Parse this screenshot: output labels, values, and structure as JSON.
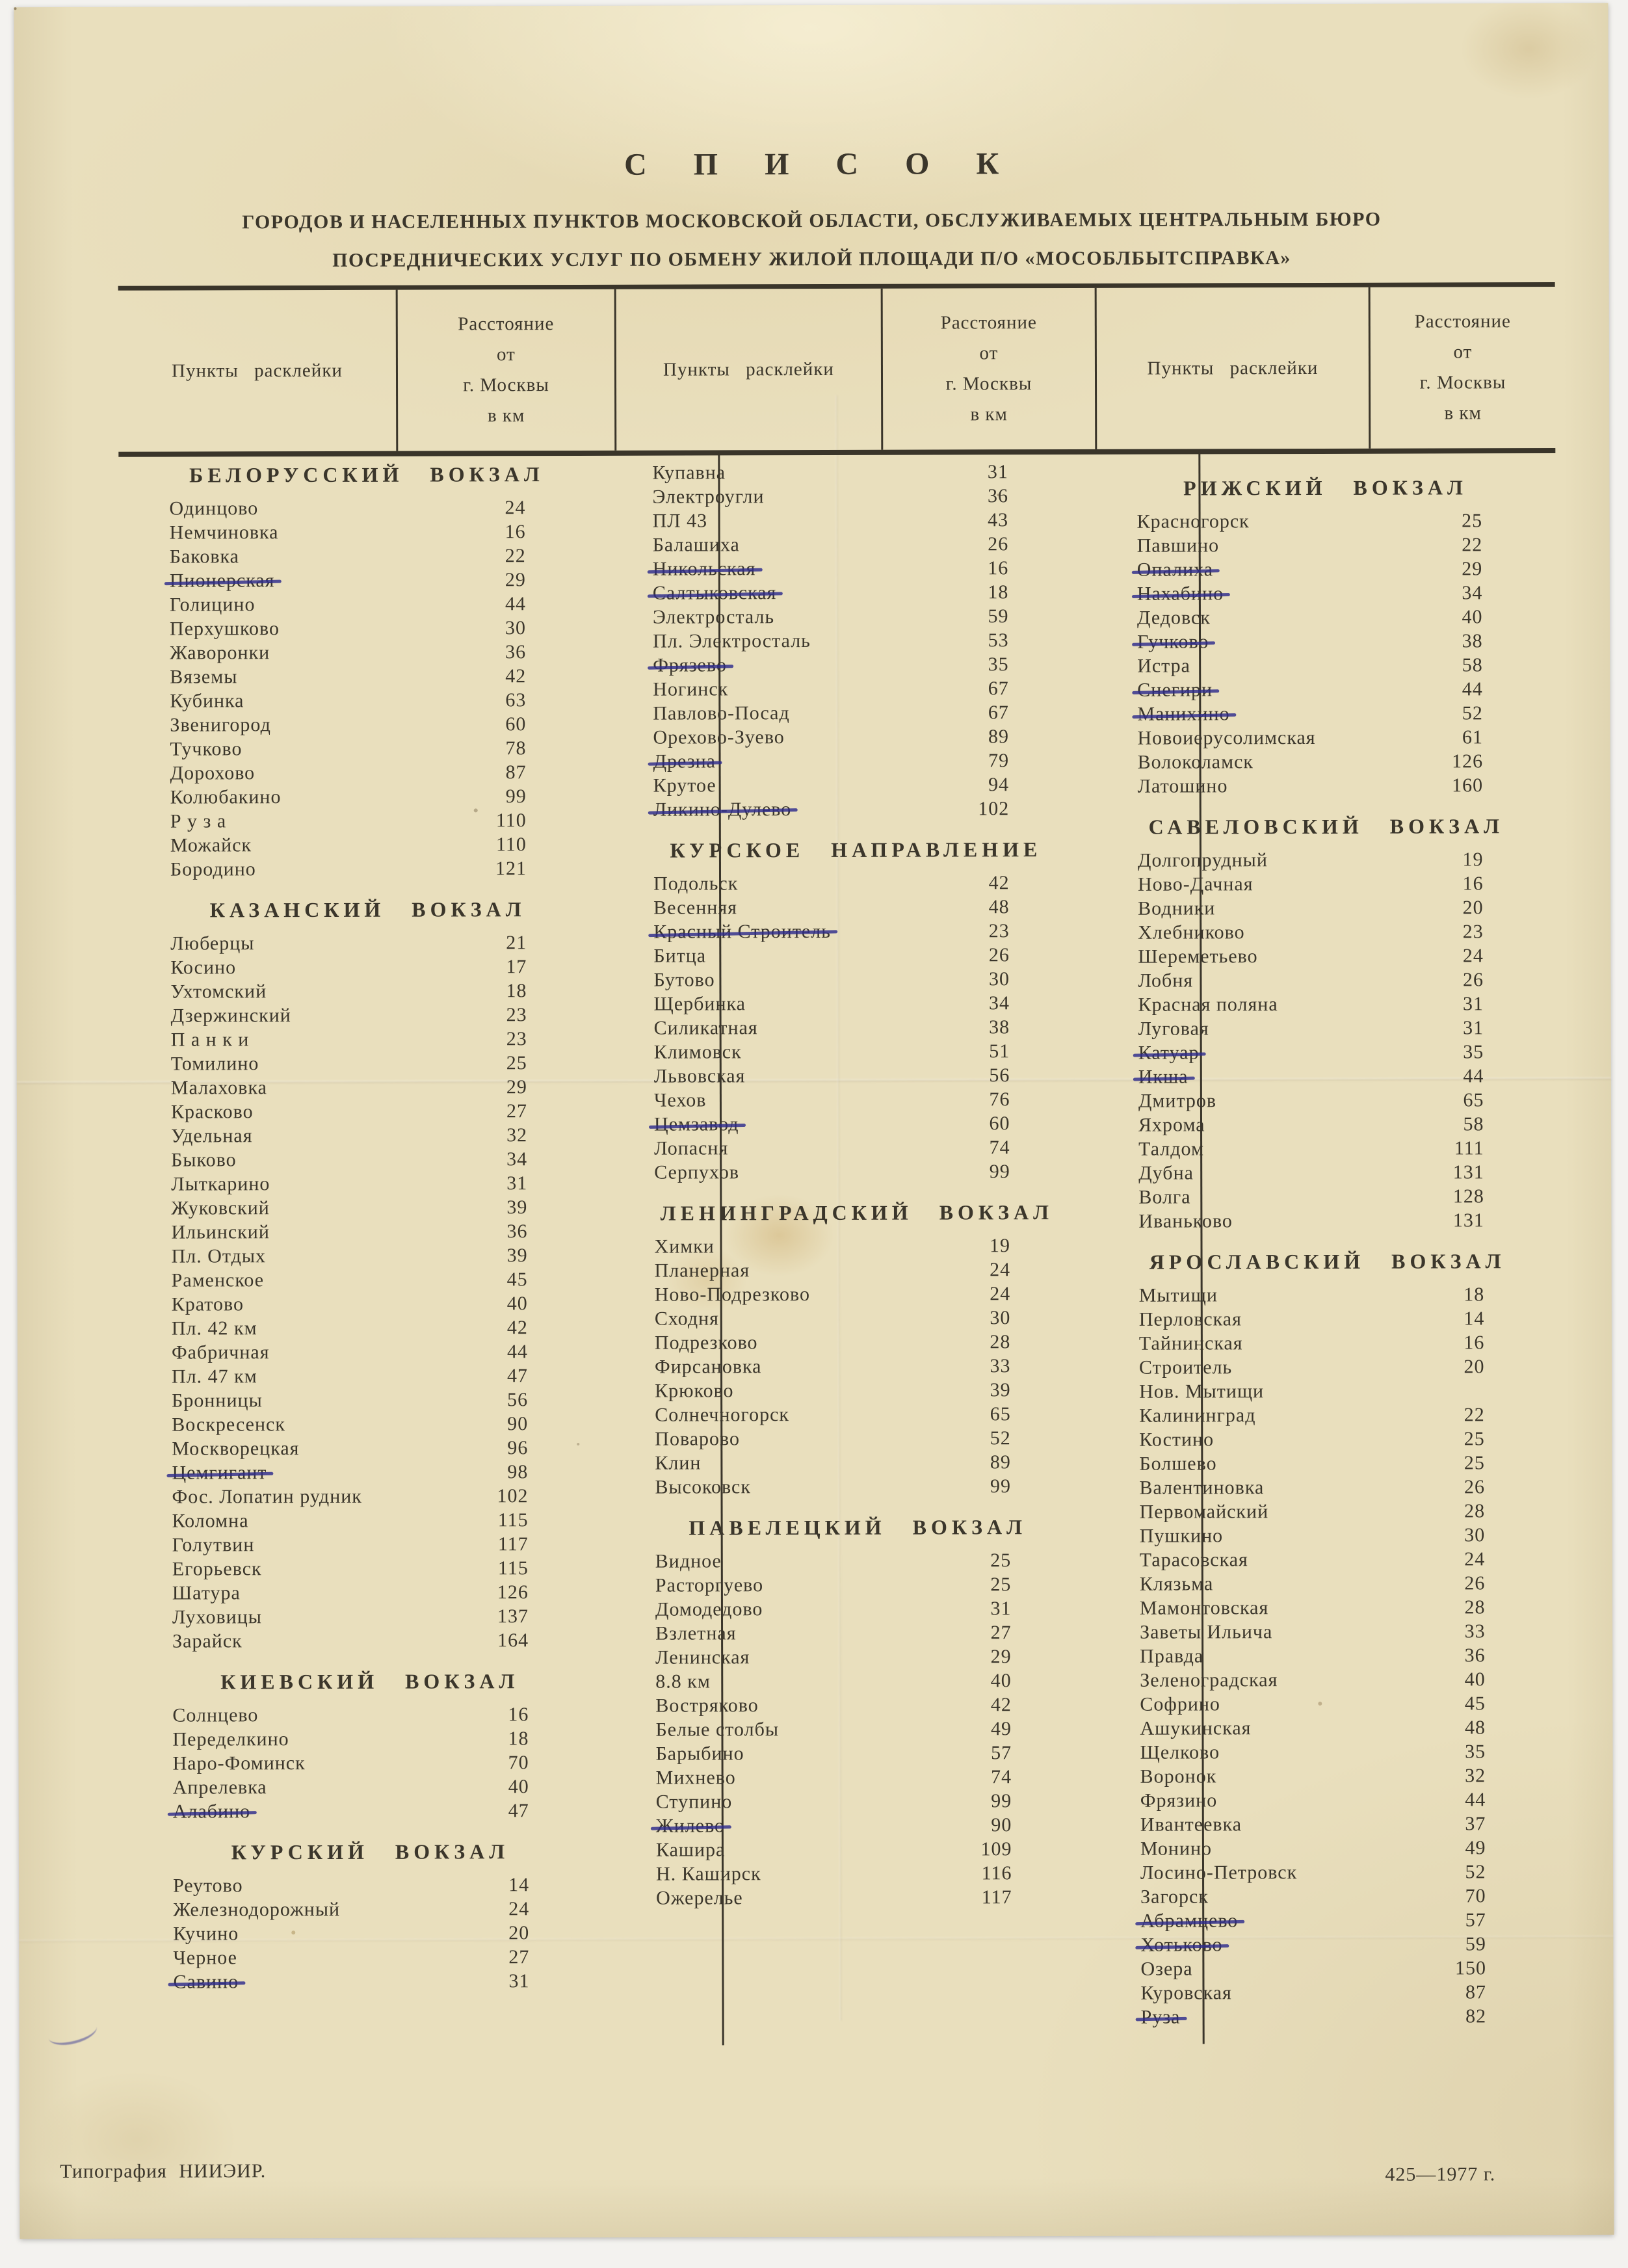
{
  "page": {
    "title": "С П И С О К",
    "subtitle_line1": "ГОРОДОВ И НАСЕЛЕННЫХ ПУНКТОВ МОСКОВСКОЙ ОБЛАСТИ, ОБСЛУЖИВАЕМЫХ ЦЕНТРАЛЬНЫМ БЮРО",
    "subtitle_line2": "ПОСРЕДНИЧЕСКИХ УСЛУГ ПО ОБМЕНУ ЖИЛОЙ ПЛОЩАДИ П/О «МОСОБЛБЫТСПРАВКА»"
  },
  "table_header": {
    "points_label": "Пункты расклейки",
    "distance_label_lines": [
      "Расстояние",
      "от",
      "г. Москвы",
      "в км"
    ]
  },
  "colors": {
    "paper": "#e9dfbd",
    "ink": "#3b362b",
    "strike_ink": "#2e2c8c"
  },
  "columns": [
    {
      "blocks": [
        {
          "heading": "БЕЛОРУССКИЙ ВОКЗАЛ",
          "rows": [
            {
              "name": "Одинцово",
              "km": "24"
            },
            {
              "name": "Немчиновка",
              "km": "16"
            },
            {
              "name": "Баковка",
              "km": "22"
            },
            {
              "name": "Пионерская",
              "km": "29",
              "struck": true
            },
            {
              "name": "Голицино",
              "km": "44"
            },
            {
              "name": "Перхушково",
              "km": "30"
            },
            {
              "name": "Жаворонки",
              "km": "36"
            },
            {
              "name": "Вяземы",
              "km": "42"
            },
            {
              "name": "Кубинка",
              "km": "63"
            },
            {
              "name": "Звенигород",
              "km": "60"
            },
            {
              "name": "Тучково",
              "km": "78"
            },
            {
              "name": "Дорохово",
              "km": "87"
            },
            {
              "name": "Колюбакино",
              "km": "99"
            },
            {
              "name": "Р у з а",
              "km": "110"
            },
            {
              "name": "Можайск",
              "km": "110"
            },
            {
              "name": "Бородино",
              "km": "121"
            }
          ]
        },
        {
          "heading": "КАЗАНСКИЙ ВОКЗАЛ",
          "rows": [
            {
              "name": "Люберцы",
              "km": "21"
            },
            {
              "name": "Косино",
              "km": "17"
            },
            {
              "name": "Ухтомский",
              "km": "18"
            },
            {
              "name": "Дзержинский",
              "km": "23"
            },
            {
              "name": "П а н к и",
              "km": "23"
            },
            {
              "name": "Томилино",
              "km": "25"
            },
            {
              "name": "Малаховка",
              "km": "29"
            },
            {
              "name": "Красково",
              "km": "27"
            },
            {
              "name": "Удельная",
              "km": "32"
            },
            {
              "name": "Быково",
              "km": "34"
            },
            {
              "name": "Лыткарино",
              "km": "31"
            },
            {
              "name": "Жуковский",
              "km": "39"
            },
            {
              "name": "Ильинский",
              "km": "36"
            },
            {
              "name": "Пл. Отдых",
              "km": "39"
            },
            {
              "name": "Раменское",
              "km": "45"
            },
            {
              "name": "Кратово",
              "km": "40"
            },
            {
              "name": "Пл. 42 км",
              "km": "42"
            },
            {
              "name": "Фабричная",
              "km": "44"
            },
            {
              "name": "Пл. 47 км",
              "km": "47"
            },
            {
              "name": "Бронницы",
              "km": "56"
            },
            {
              "name": "Воскресенск",
              "km": "90"
            },
            {
              "name": "Москворецкая",
              "km": "96"
            },
            {
              "name": "Цемгигант",
              "km": "98",
              "struck": true
            },
            {
              "name": "Фос. Лопатин рудник",
              "km": "102"
            },
            {
              "name": "Коломна",
              "km": "115"
            },
            {
              "name": "Голутвин",
              "km": "117"
            },
            {
              "name": "Егорьевск",
              "km": "115"
            },
            {
              "name": "Шатура",
              "km": "126"
            },
            {
              "name": "Луховицы",
              "km": "137"
            },
            {
              "name": "Зарайск",
              "km": "164"
            }
          ]
        },
        {
          "heading": "КИЕВСКИЙ ВОКЗАЛ",
          "rows": [
            {
              "name": "Солнцево",
              "km": "16"
            },
            {
              "name": "Переделкино",
              "km": "18"
            },
            {
              "name": "Наро-Фоминск",
              "km": "70"
            },
            {
              "name": "Апрелевка",
              "km": "40"
            },
            {
              "name": "Алабино",
              "km": "47",
              "struck": true
            }
          ]
        },
        {
          "heading": "КУРСКИЙ ВОКЗАЛ",
          "rows": [
            {
              "name": "Реутово",
              "km": "14"
            },
            {
              "name": "Железнодорожный",
              "km": "24"
            },
            {
              "name": "Кучино",
              "km": "20"
            },
            {
              "name": "Черное",
              "km": "27"
            },
            {
              "name": "Савино",
              "km": "31",
              "struck": true
            }
          ]
        }
      ]
    },
    {
      "blocks": [
        {
          "heading": "",
          "rows": [
            {
              "name": "Купавна",
              "km": "31"
            },
            {
              "name": "Электроугли",
              "km": "36"
            },
            {
              "name": "ПЛ 43",
              "km": "43"
            },
            {
              "name": "Балашиха",
              "km": "26"
            },
            {
              "name": "Никольская",
              "km": "16",
              "struck": true
            },
            {
              "name": "Салтыковская",
              "km": "18",
              "struck": true
            },
            {
              "name": "Электросталь",
              "km": "59"
            },
            {
              "name": "Пл. Электросталь",
              "km": "53"
            },
            {
              "name": "Фрязево",
              "km": "35",
              "struck": true
            },
            {
              "name": "Ногинск",
              "km": "67"
            },
            {
              "name": "Павлово-Посад",
              "km": "67"
            },
            {
              "name": "Орехово-Зуево",
              "km": "89"
            },
            {
              "name": "Дрезна",
              "km": "79",
              "struck": true
            },
            {
              "name": "Крутое",
              "km": "94"
            },
            {
              "name": "Ликино-Дулево",
              "km": "102",
              "struck": true
            }
          ]
        },
        {
          "heading": "КУРСКОЕ НАПРАВЛЕНИЕ",
          "rows": [
            {
              "name": "Подольск",
              "km": "42"
            },
            {
              "name": "Весенняя",
              "km": "48"
            },
            {
              "name": "Красный Строитель",
              "km": "23",
              "struck": true
            },
            {
              "name": "Битца",
              "km": "26"
            },
            {
              "name": "Бутово",
              "km": "30"
            },
            {
              "name": "Щербинка",
              "km": "34"
            },
            {
              "name": "Силикатная",
              "km": "38"
            },
            {
              "name": "Климовск",
              "km": "51"
            },
            {
              "name": "Львовская",
              "km": "56"
            },
            {
              "name": "Чехов",
              "km": "76"
            },
            {
              "name": "Цемзавод",
              "km": "60",
              "struck": true
            },
            {
              "name": "Лопасня",
              "km": "74"
            },
            {
              "name": "Серпухов",
              "km": "99"
            }
          ]
        },
        {
          "heading": "ЛЕНИНГРАДСКИЙ ВОКЗАЛ",
          "rows": [
            {
              "name": "Химки",
              "km": "19"
            },
            {
              "name": "Планерная",
              "km": "24"
            },
            {
              "name": "Ново-Подрезково",
              "km": "24"
            },
            {
              "name": "Сходня",
              "km": "30"
            },
            {
              "name": "Подрезково",
              "km": "28"
            },
            {
              "name": "Фирсановка",
              "km": "33"
            },
            {
              "name": "Крюково",
              "km": "39"
            },
            {
              "name": "Солнечногорск",
              "km": "65"
            },
            {
              "name": "Поварово",
              "km": "52"
            },
            {
              "name": "Клин",
              "km": "89"
            },
            {
              "name": "Высоковск",
              "km": "99"
            }
          ]
        },
        {
          "heading": "ПАВЕЛЕЦКИЙ ВОКЗАЛ",
          "rows": [
            {
              "name": "Видное",
              "km": "25"
            },
            {
              "name": "Расторгуево",
              "km": "25"
            },
            {
              "name": "Домодедово",
              "km": "31"
            },
            {
              "name": "Взлетная",
              "km": "27"
            },
            {
              "name": "Ленинская",
              "km": "29"
            },
            {
              "name": "8.8 км",
              "km": "40"
            },
            {
              "name": "Востряково",
              "km": "42"
            },
            {
              "name": "Белые столбы",
              "km": "49"
            },
            {
              "name": "Барыбино",
              "km": "57"
            },
            {
              "name": "Михнево",
              "km": "74"
            },
            {
              "name": "Ступино",
              "km": "99"
            },
            {
              "name": "Жилево",
              "km": "90",
              "struck": true
            },
            {
              "name": "Кашира",
              "km": "109"
            },
            {
              "name": "Н. Каширск",
              "km": "116"
            },
            {
              "name": "Ожерелье",
              "km": "117"
            }
          ]
        }
      ]
    },
    {
      "blocks": [
        {
          "heading": "РИЖСКИЙ ВОКЗАЛ",
          "rows": [
            {
              "name": "Красногорск",
              "km": "25"
            },
            {
              "name": "Павшино",
              "km": "22"
            },
            {
              "name": "Опалиха",
              "km": "29",
              "struck": true
            },
            {
              "name": "Нахабино",
              "km": "34",
              "struck": true
            },
            {
              "name": "Дедовск",
              "km": "40"
            },
            {
              "name": "Гучково",
              "km": "38",
              "struck": true
            },
            {
              "name": "Истра",
              "km": "58"
            },
            {
              "name": "Снегири",
              "km": "44",
              "struck": true
            },
            {
              "name": "Манихино",
              "km": "52",
              "struck": true
            },
            {
              "name": "Новоиерусолимская",
              "km": "61"
            },
            {
              "name": "Волоколамск",
              "km": "126"
            },
            {
              "name": "Латошино",
              "km": "160"
            }
          ]
        },
        {
          "heading": "САВЕЛОВСКИЙ ВОКЗАЛ",
          "rows": [
            {
              "name": "Долгопрудный",
              "km": "19"
            },
            {
              "name": "Ново-Дачная",
              "km": "16"
            },
            {
              "name": "Водники",
              "km": "20"
            },
            {
              "name": "Хлебниково",
              "km": "23"
            },
            {
              "name": "Шереметьево",
              "km": "24"
            },
            {
              "name": "Лобня",
              "km": "26"
            },
            {
              "name": "Красная поляна",
              "km": "31"
            },
            {
              "name": "Луговая",
              "km": "31"
            },
            {
              "name": "Катуар",
              "km": "35",
              "struck": true
            },
            {
              "name": "Икша",
              "km": "44",
              "struck": true
            },
            {
              "name": "Дмитров",
              "km": "65"
            },
            {
              "name": "Яхрома",
              "km": "58"
            },
            {
              "name": "Талдом",
              "km": "111"
            },
            {
              "name": "Дубна",
              "km": "131"
            },
            {
              "name": "Волга",
              "km": "128"
            },
            {
              "name": "Иваньково",
              "km": "131"
            }
          ]
        },
        {
          "heading": "ЯРОСЛАВСКИЙ ВОКЗАЛ",
          "rows": [
            {
              "name": "Мытищи",
              "km": "18"
            },
            {
              "name": "Перловская",
              "km": "14"
            },
            {
              "name": "Тайнинская",
              "km": "16"
            },
            {
              "name": "Строитель",
              "km": "20"
            },
            {
              "name": "Нов. Мытищи",
              "km": ""
            },
            {
              "name": "Калининград",
              "km": "22"
            },
            {
              "name": "Костино",
              "km": "25"
            },
            {
              "name": "Болшево",
              "km": "25"
            },
            {
              "name": "Валентиновка",
              "km": "26"
            },
            {
              "name": "Первомайский",
              "km": "28"
            },
            {
              "name": "Пушкино",
              "km": "30"
            },
            {
              "name": "Тарасовская",
              "km": "24"
            },
            {
              "name": "Клязьма",
              "km": "26"
            },
            {
              "name": "Мамонтовская",
              "km": "28"
            },
            {
              "name": "Заветы Ильича",
              "km": "33"
            },
            {
              "name": "Правда",
              "km": "36"
            },
            {
              "name": "Зеленоградская",
              "km": "40"
            },
            {
              "name": "Софрино",
              "km": "45"
            },
            {
              "name": "Ашукинская",
              "km": "48"
            },
            {
              "name": "Щелково",
              "km": "35"
            },
            {
              "name": "Воронок",
              "km": "32"
            },
            {
              "name": "Фрязино",
              "km": "44"
            },
            {
              "name": "Ивантеевка",
              "km": "37"
            },
            {
              "name": "Монино",
              "km": "49"
            },
            {
              "name": "Лосино-Петровск",
              "km": "52"
            },
            {
              "name": "Загорск",
              "km": "70"
            },
            {
              "name": "Абрамцево",
              "km": "57",
              "struck": true
            },
            {
              "name": "Хотьково",
              "km": "59",
              "struck": true
            },
            {
              "name": "Озера",
              "km": "150"
            },
            {
              "name": "Куровская",
              "km": "87"
            },
            {
              "name": "Руза",
              "km": "82",
              "struck": true
            }
          ]
        }
      ]
    }
  ],
  "footer": {
    "left": "Типография НИИЭИР.",
    "right": "425—1977 г."
  }
}
